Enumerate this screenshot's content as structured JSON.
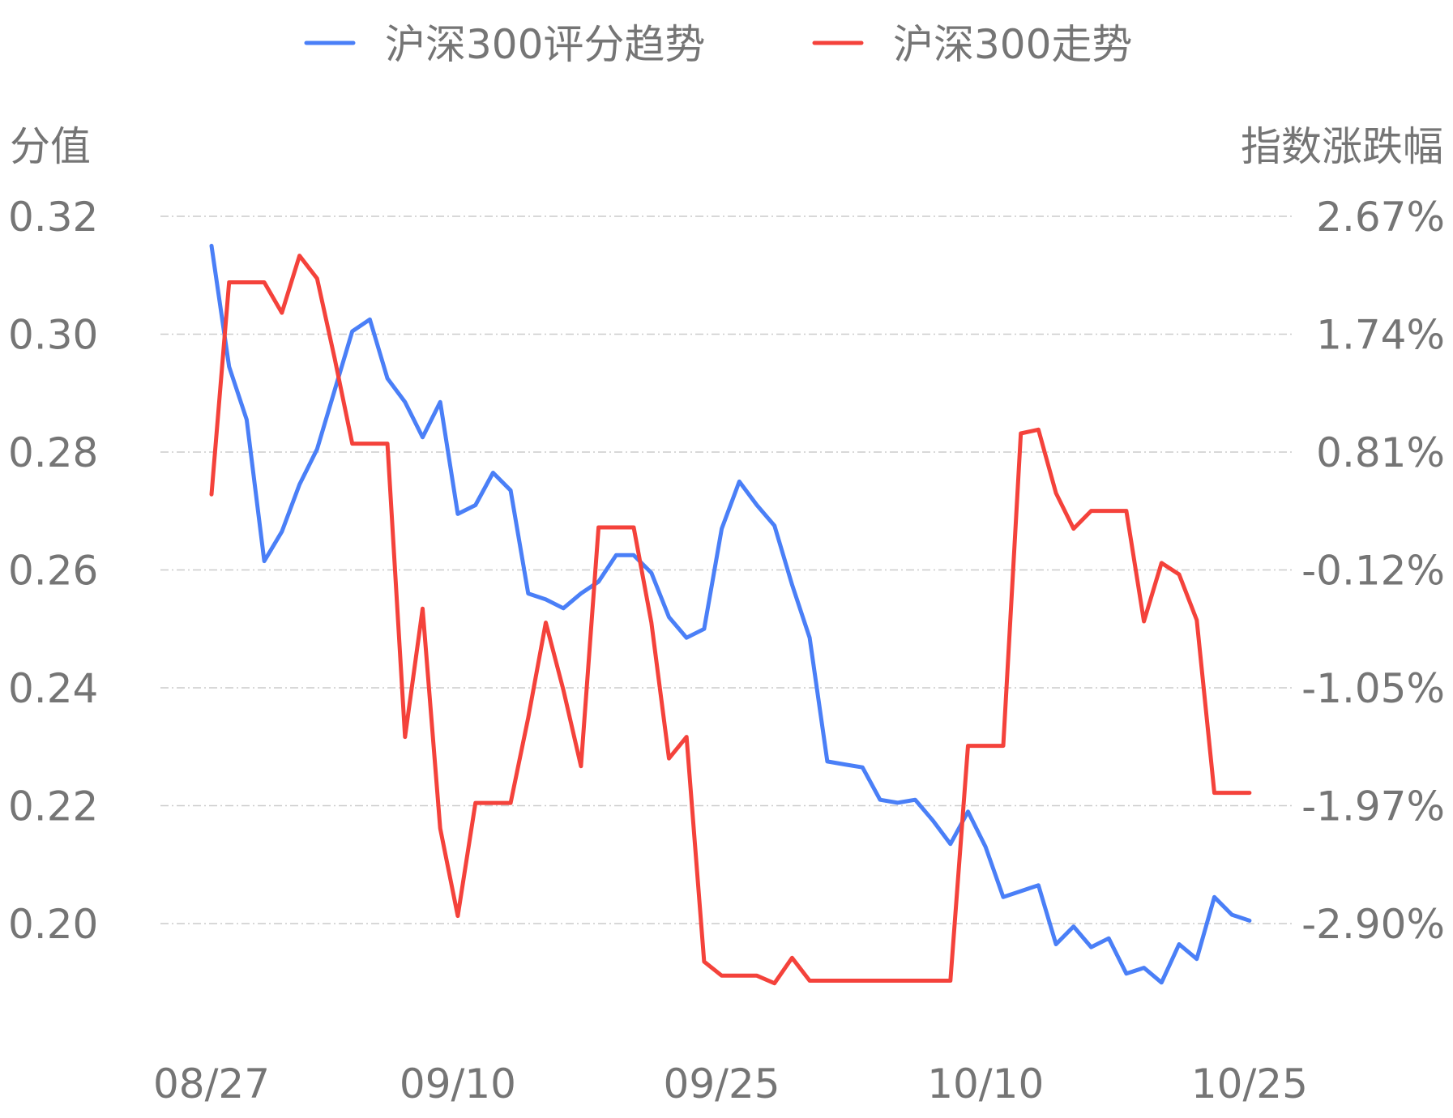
{
  "chart_data": {
    "type": "line",
    "dual_axis": true,
    "legend_position": "top-center",
    "grid": "horizontal-dashed",
    "y_axis_left": {
      "label": "分值",
      "ticks": [
        "0.32",
        "0.30",
        "0.28",
        "0.26",
        "0.24",
        "0.22",
        "0.20"
      ],
      "range": [
        0.2,
        0.32
      ]
    },
    "y_axis_right": {
      "label": "指数涨跌幅",
      "ticks": [
        "2.67%",
        "1.74%",
        "0.81%",
        "-0.12%",
        "-1.05%",
        "-1.97%",
        "-2.90%"
      ],
      "range": [
        -2.9,
        2.67
      ]
    },
    "x_tick_labels": [
      "08/27",
      "09/10",
      "09/25",
      "10/10",
      "10/25"
    ],
    "x_tick_indices": [
      0,
      14,
      29,
      44,
      59
    ],
    "series": [
      {
        "name": "沪深300评分趋势",
        "axis": "left",
        "color": "#4a7ff7",
        "values": [
          0.315,
          0.2945,
          0.2855,
          0.2615,
          0.2665,
          0.2745,
          0.2805,
          0.2905,
          0.3005,
          0.3025,
          0.2925,
          0.2885,
          0.2825,
          0.2885,
          0.2695,
          0.271,
          0.2765,
          0.2735,
          0.256,
          0.255,
          0.2535,
          0.256,
          0.258,
          0.2625,
          0.2625,
          0.2595,
          0.252,
          0.2485,
          0.25,
          0.267,
          0.275,
          0.271,
          0.2675,
          0.2575,
          0.2485,
          0.2275,
          0.227,
          0.2265,
          0.221,
          0.2205,
          0.221,
          0.2175,
          0.2135,
          0.219,
          0.213,
          0.2045,
          0.2055,
          0.2065,
          0.1965,
          0.1995,
          0.196,
          0.1975,
          0.1915,
          0.1925,
          0.19,
          0.1965,
          0.194,
          0.2045,
          0.2015,
          0.2005
        ]
      },
      {
        "name": "沪深300走势",
        "axis": "right",
        "color": "#f4423b",
        "values": [
          0.48,
          2.15,
          2.15,
          2.15,
          1.91,
          2.36,
          2.18,
          1.55,
          0.88,
          0.88,
          0.88,
          -1.43,
          -0.42,
          -2.15,
          -2.84,
          -1.95,
          -1.95,
          -1.95,
          -1.28,
          -0.53,
          -1.06,
          -1.66,
          0.22,
          0.22,
          0.22,
          -0.53,
          -1.6,
          -1.43,
          -3.2,
          -3.31,
          -3.31,
          -3.31,
          -3.37,
          -3.17,
          -3.35,
          -3.35,
          -3.35,
          -3.35,
          -3.35,
          -3.35,
          -3.35,
          -3.35,
          -3.35,
          -1.5,
          -1.5,
          -1.5,
          0.96,
          0.99,
          0.49,
          0.21,
          0.35,
          0.35,
          0.35,
          -0.52,
          -0.06,
          -0.15,
          -0.51,
          -1.87,
          -1.87,
          -1.87
        ]
      }
    ]
  }
}
